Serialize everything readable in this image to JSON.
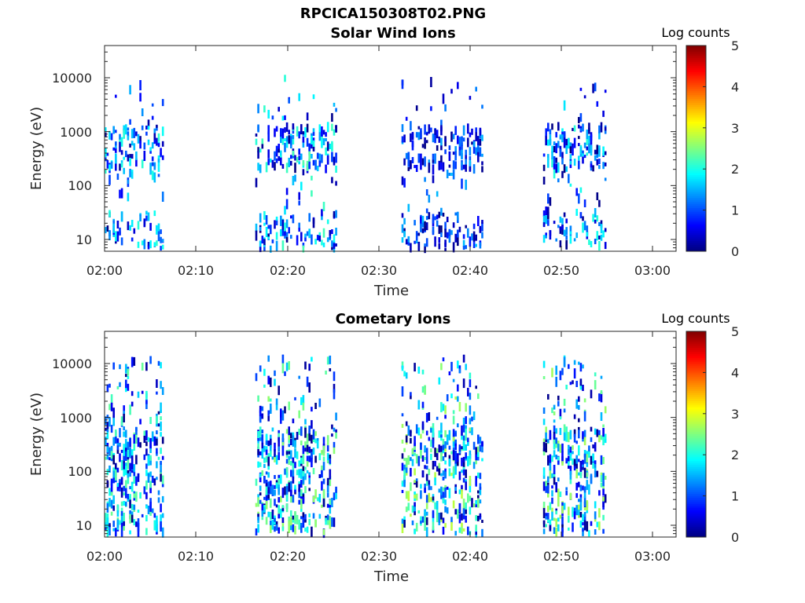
{
  "figure_title": "RPCICA150308T02.PNG",
  "chart_data": [
    {
      "type": "heatmap",
      "title": "Solar Wind Ions",
      "xlabel": "Time",
      "ylabel": "Energy (eV)",
      "x_ticks": [
        "02:00",
        "02:10",
        "02:20",
        "02:30",
        "02:40",
        "02:50",
        "03:00"
      ],
      "y_ticks": [
        "10",
        "100",
        "1000",
        "10000"
      ],
      "y_scale": "log",
      "ylim_eV": [
        6,
        45000
      ],
      "xlim_minutes_after_0200": [
        0,
        63
      ],
      "colorbar": {
        "title": "Log counts",
        "ticks": [
          "0",
          "1",
          "2",
          "3",
          "4",
          "5"
        ],
        "range": [
          0,
          5
        ],
        "colormap": "jet"
      },
      "bursts": [
        {
          "start": 0.0,
          "end": 6.5,
          "peak": 2.1
        },
        {
          "start": 16.5,
          "end": 25.5,
          "peak": 2.3
        },
        {
          "start": 32.5,
          "end": 41.5,
          "peak": 1.6
        },
        {
          "start": 48.0,
          "end": 55.0,
          "peak": 2.1
        }
      ]
    },
    {
      "type": "heatmap",
      "title": "Cometary Ions",
      "xlabel": "Time",
      "ylabel": "Energy (eV)",
      "x_ticks": [
        "02:00",
        "02:10",
        "02:20",
        "02:30",
        "02:40",
        "02:50",
        "03:00"
      ],
      "y_ticks": [
        "10",
        "100",
        "1000",
        "10000"
      ],
      "y_scale": "log",
      "ylim_eV": [
        6,
        45000
      ],
      "xlim_minutes_after_0200": [
        0,
        63
      ],
      "colorbar": {
        "title": "Log counts",
        "ticks": [
          "0",
          "1",
          "2",
          "3",
          "4",
          "5"
        ],
        "range": [
          0,
          5
        ],
        "colormap": "jet"
      },
      "bursts": [
        {
          "start": 0.0,
          "end": 6.5,
          "peak": 2.4
        },
        {
          "start": 16.5,
          "end": 25.5,
          "peak": 2.6
        },
        {
          "start": 32.5,
          "end": 41.5,
          "peak": 2.8
        },
        {
          "start": 48.0,
          "end": 55.0,
          "peak": 2.7
        }
      ]
    }
  ]
}
